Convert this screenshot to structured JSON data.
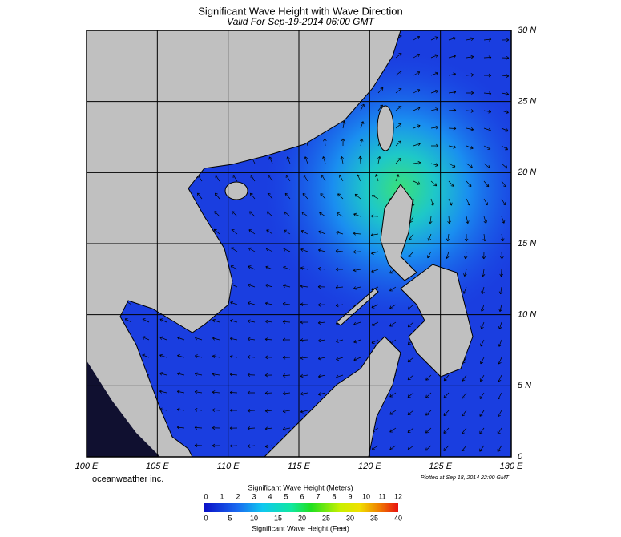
{
  "map": {
    "title": "Significant Wave Height with Wave Direction",
    "subtitle": "Valid For Sep-19-2014 06:00 GMT",
    "lat_ticks": [
      {
        "value": 0,
        "label": "0"
      },
      {
        "value": 5,
        "label": "5 N"
      },
      {
        "value": 10,
        "label": "10 N"
      },
      {
        "value": 15,
        "label": "15 N"
      },
      {
        "value": 20,
        "label": "20 N"
      },
      {
        "value": 25,
        "label": "25 N"
      },
      {
        "value": 30,
        "label": "30 N"
      }
    ],
    "lon_ticks": [
      {
        "value": 100,
        "label": "100 E"
      },
      {
        "value": 105,
        "label": "105 E"
      },
      {
        "value": 110,
        "label": "110 E"
      },
      {
        "value": 115,
        "label": "115 E"
      },
      {
        "value": 120,
        "label": "120 E"
      },
      {
        "value": 125,
        "label": "125 E"
      },
      {
        "value": 130,
        "label": "130 E"
      }
    ],
    "credit": "oceanweather inc.",
    "plotted": "Plotted at Sep 18, 2014 22:00 GMT",
    "colorbar": {
      "meters_title": "Significant Wave Height (Meters)",
      "meters_ticks": [
        0,
        1,
        2,
        3,
        4,
        5,
        6,
        7,
        8,
        9,
        10,
        11,
        12
      ],
      "feet_ticks": [
        0,
        5,
        10,
        15,
        20,
        25,
        30,
        35,
        40
      ],
      "feet_title": "Significant Wave Height (Feet)"
    }
  }
}
